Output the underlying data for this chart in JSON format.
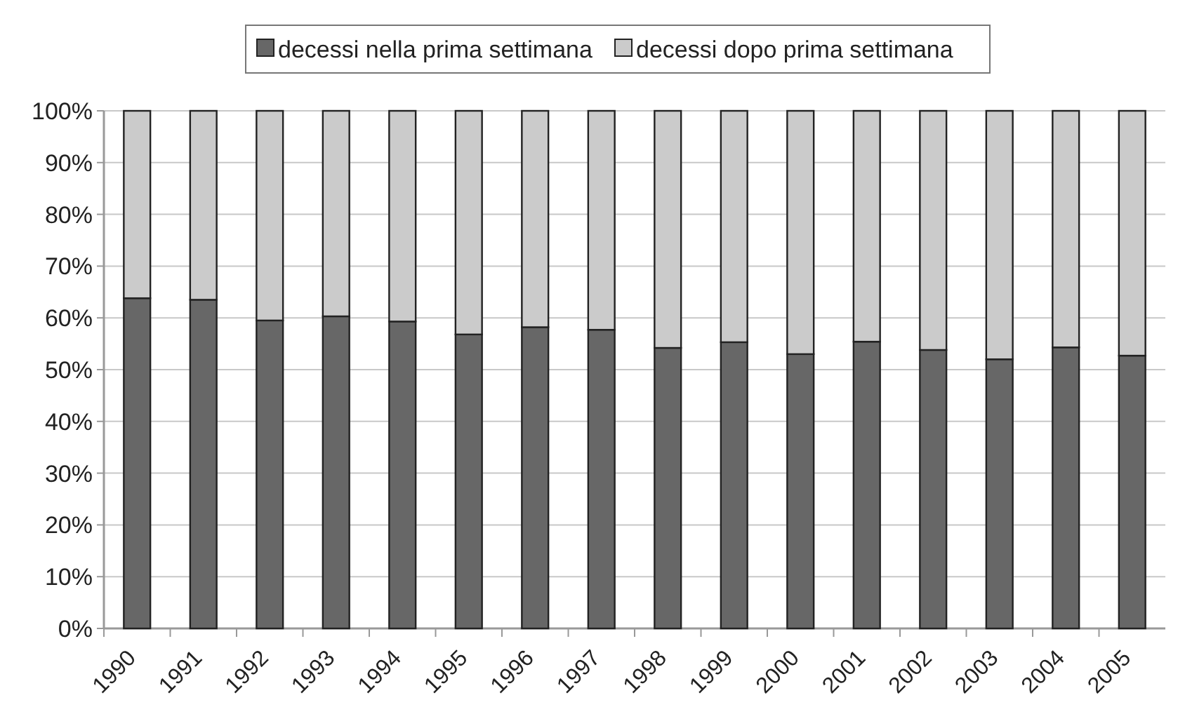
{
  "chart_data": {
    "type": "bar",
    "stacked": true,
    "categories": [
      "1990",
      "1991",
      "1992",
      "1993",
      "1994",
      "1995",
      "1996",
      "1997",
      "1998",
      "1999",
      "2000",
      "2001",
      "2002",
      "2003",
      "2004",
      "2005"
    ],
    "series": [
      {
        "name": "decessi nella prima settimana",
        "color": "#676767",
        "values": [
          63.8,
          63.5,
          59.5,
          60.3,
          59.3,
          56.8,
          58.2,
          57.7,
          54.2,
          55.3,
          53.0,
          55.4,
          53.8,
          52.0,
          54.3,
          52.7
        ]
      },
      {
        "name": "decessi dopo prima settimana",
        "color": "#cbcbcb",
        "values": [
          36.2,
          36.5,
          40.5,
          39.7,
          40.7,
          43.2,
          41.8,
          42.3,
          45.8,
          44.7,
          47.0,
          44.6,
          46.2,
          48.0,
          45.7,
          47.3
        ]
      }
    ],
    "ylim": [
      0,
      100
    ],
    "yticks": [
      {
        "value": 0,
        "label": "0%"
      },
      {
        "value": 10,
        "label": "10%"
      },
      {
        "value": 20,
        "label": "20%"
      },
      {
        "value": 30,
        "label": "30%"
      },
      {
        "value": 40,
        "label": "40%"
      },
      {
        "value": 50,
        "label": "50%"
      },
      {
        "value": 60,
        "label": "60%"
      },
      {
        "value": 70,
        "label": "70%"
      },
      {
        "value": 80,
        "label": "80%"
      },
      {
        "value": 90,
        "label": "90%"
      },
      {
        "value": 100,
        "label": "100%"
      }
    ],
    "grid": "y",
    "legend": "top"
  }
}
